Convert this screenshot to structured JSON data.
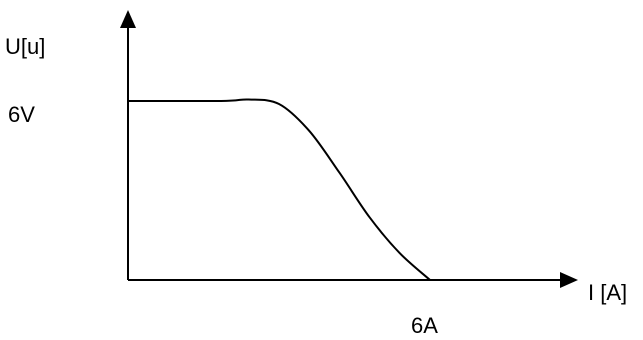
{
  "chart_data": {
    "type": "line",
    "title": "",
    "xlabel": "I [A]",
    "ylabel": "U[u]",
    "x_ticks": [
      {
        "value": 6,
        "label": "6A"
      }
    ],
    "y_ticks": [
      {
        "value": 6,
        "label": "6V"
      }
    ],
    "grid": false,
    "series": [
      {
        "points": [
          [
            0,
            6.0
          ],
          [
            1.85,
            6.0
          ],
          [
            2.4,
            6.05
          ],
          [
            3.0,
            5.9
          ],
          [
            3.6,
            5.0
          ],
          [
            4.2,
            3.6
          ],
          [
            4.8,
            2.1
          ],
          [
            5.4,
            0.9
          ],
          [
            6.0,
            0.0
          ]
        ]
      }
    ]
  }
}
